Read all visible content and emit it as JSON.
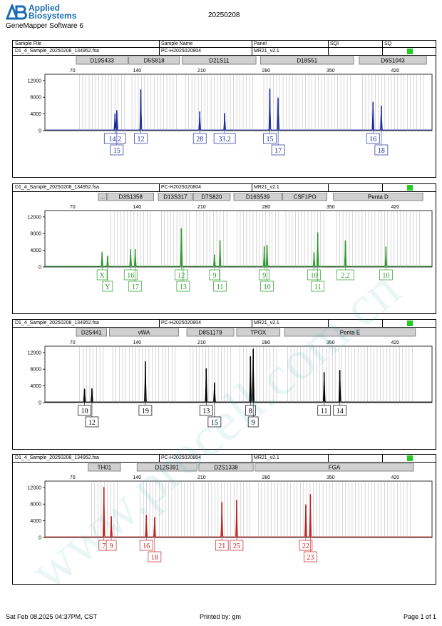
{
  "header": {
    "brand_line1": "Applied",
    "brand_line2": "Biosystems",
    "software": "GeneMapper Software 6",
    "run_id": "20250208"
  },
  "columns": {
    "sample_file": "Sample File",
    "sample_name": "Sample Name",
    "panel": "Panel",
    "sqi": "SQI",
    "sq": "SQ"
  },
  "footer": {
    "date": "Sat Feb 08,2025 04:37PM, CST",
    "printed_by": "Printed by: gm",
    "page": "Page 1 of 1"
  },
  "watermark": "www.procell.com.cn",
  "colors": {
    "blue": "#1a2a9a",
    "green": "#2c9a2c",
    "black": "#000000",
    "red": "#c02020",
    "sq_ok": "#22cc22",
    "locus_bar": "#d0d0d0",
    "bin": "#bdbdbd"
  },
  "chart_data": [
    {
      "type": "line",
      "dye": "blue",
      "sample_file": "D1_4_Sample_20250208_134952.fsa",
      "sample_name": "PC-H2025020804",
      "panel": "MR21_v2.1",
      "x_ticks": [
        70,
        140,
        210,
        280,
        350,
        420
      ],
      "y_ticks": [
        0,
        4000,
        8000,
        12000
      ],
      "xlim": [
        40,
        460
      ],
      "ylim": [
        0,
        13000
      ],
      "loci": [
        {
          "name": "D19S433",
          "start": 74,
          "end": 130
        },
        {
          "name": "D5S818",
          "start": 131,
          "end": 186
        },
        {
          "name": "D21S11",
          "start": 189,
          "end": 269
        },
        {
          "name": "D18S51",
          "start": 274,
          "end": 375
        },
        {
          "name": "D6S1043",
          "start": 381,
          "end": 454
        }
      ],
      "peaks": [
        {
          "x": 116,
          "y": 4000
        },
        {
          "x": 118,
          "y": 4800
        },
        {
          "x": 144,
          "y": 9800
        },
        {
          "x": 208,
          "y": 4500
        },
        {
          "x": 235,
          "y": 4100
        },
        {
          "x": 284,
          "y": 10000
        },
        {
          "x": 293,
          "y": 7800
        },
        {
          "x": 396,
          "y": 6800
        },
        {
          "x": 405,
          "y": 5900
        }
      ],
      "alleles": [
        {
          "label": "14.2",
          "x": 116,
          "row": 1
        },
        {
          "label": "15",
          "x": 118,
          "row": 2
        },
        {
          "label": "12",
          "x": 144,
          "row": 1
        },
        {
          "label": "28",
          "x": 208,
          "row": 1
        },
        {
          "label": "33.2",
          "x": 235,
          "row": 1
        },
        {
          "label": "15",
          "x": 284,
          "row": 1
        },
        {
          "label": "17",
          "x": 293,
          "row": 2
        },
        {
          "label": "16",
          "x": 396,
          "row": 1
        },
        {
          "label": "18",
          "x": 405,
          "row": 2
        }
      ]
    },
    {
      "type": "line",
      "dye": "green",
      "sample_file": "D1_4_Sample_20250208_134952.fsa",
      "sample_name": "PC-H2025020804",
      "panel": "MR21_v2.1",
      "x_ticks": [
        70,
        140,
        210,
        280,
        350,
        420
      ],
      "y_ticks": [
        0,
        4000,
        8000,
        12000
      ],
      "xlim": [
        40,
        460
      ],
      "ylim": [
        0,
        13000
      ],
      "loci": [
        {
          "name": "...",
          "start": 98,
          "end": 107
        },
        {
          "name": "D3S1358",
          "start": 108,
          "end": 158
        },
        {
          "name": "D13S317",
          "start": 163,
          "end": 200
        },
        {
          "name": "D7S820",
          "start": 201,
          "end": 241
        },
        {
          "name": "D16S539",
          "start": 245,
          "end": 297
        },
        {
          "name": "CSF1PO",
          "start": 298,
          "end": 346
        },
        {
          "name": "Penta D",
          "start": 353,
          "end": 450
        }
      ],
      "peaks": [
        {
          "x": 102,
          "y": 3500
        },
        {
          "x": 108,
          "y": 2600
        },
        {
          "x": 133,
          "y": 4200
        },
        {
          "x": 138,
          "y": 4200
        },
        {
          "x": 188,
          "y": 9200
        },
        {
          "x": 224,
          "y": 2900
        },
        {
          "x": 230,
          "y": 6300
        },
        {
          "x": 278,
          "y": 4900
        },
        {
          "x": 281,
          "y": 5200
        },
        {
          "x": 332,
          "y": 3400
        },
        {
          "x": 336,
          "y": 8200
        },
        {
          "x": 366,
          "y": 6200
        },
        {
          "x": 410,
          "y": 4800
        }
      ],
      "alleles": [
        {
          "label": "X",
          "x": 102,
          "row": 1
        },
        {
          "label": "Y",
          "x": 108,
          "row": 2
        },
        {
          "label": "16",
          "x": 133,
          "row": 1
        },
        {
          "label": "17",
          "x": 138,
          "row": 2
        },
        {
          "label": "12",
          "x": 188,
          "row": 1
        },
        {
          "label": "13",
          "x": 190,
          "row": 2
        },
        {
          "label": "9",
          "x": 224,
          "row": 1
        },
        {
          "label": "11",
          "x": 230,
          "row": 2
        },
        {
          "label": "9",
          "x": 278,
          "row": 1
        },
        {
          "label": "10",
          "x": 281,
          "row": 2
        },
        {
          "label": "10",
          "x": 332,
          "row": 1
        },
        {
          "label": "11",
          "x": 336,
          "row": 2
        },
        {
          "label": "2.2",
          "x": 366,
          "row": 1
        },
        {
          "label": "10",
          "x": 410,
          "row": 1
        }
      ]
    },
    {
      "type": "line",
      "dye": "black",
      "sample_file": "D1_4_Sample_20250208_134952.fsa",
      "sample_name": "PC-H2025020804",
      "panel": "MR21_v2.1",
      "x_ticks": [
        70,
        140,
        210,
        280,
        350,
        420
      ],
      "y_ticks": [
        0,
        4000,
        8000,
        12000
      ],
      "xlim": [
        40,
        460
      ],
      "ylim": [
        0,
        13000
      ],
      "loci": [
        {
          "name": "D2S441",
          "start": 74,
          "end": 107
        },
        {
          "name": "vWA",
          "start": 110,
          "end": 185
        },
        {
          "name": "D8S1179",
          "start": 194,
          "end": 245
        },
        {
          "name": "TPOX",
          "start": 248,
          "end": 295
        },
        {
          "name": "Penta E",
          "start": 300,
          "end": 442
        }
      ],
      "peaks": [
        {
          "x": 83,
          "y": 3200
        },
        {
          "x": 91,
          "y": 3300
        },
        {
          "x": 149,
          "y": 9800
        },
        {
          "x": 215,
          "y": 8100
        },
        {
          "x": 224,
          "y": 4700
        },
        {
          "x": 263,
          "y": 11000
        },
        {
          "x": 266,
          "y": 12800
        },
        {
          "x": 343,
          "y": 7200
        },
        {
          "x": 360,
          "y": 7700
        }
      ],
      "alleles": [
        {
          "label": "10",
          "x": 83,
          "row": 1
        },
        {
          "label": "12",
          "x": 91,
          "row": 2
        },
        {
          "label": "19",
          "x": 149,
          "row": 1
        },
        {
          "label": "13",
          "x": 215,
          "row": 1
        },
        {
          "label": "15",
          "x": 224,
          "row": 2
        },
        {
          "label": "8",
          "x": 263,
          "row": 1
        },
        {
          "label": "9",
          "x": 266,
          "row": 2
        },
        {
          "label": "11",
          "x": 343,
          "row": 1
        },
        {
          "label": "14",
          "x": 360,
          "row": 1
        }
      ]
    },
    {
      "type": "line",
      "dye": "red",
      "sample_file": "D1_4_Sample_20250208_134952.fsa",
      "sample_name": "PC-H2025020804",
      "panel": "MR21_v2.1",
      "x_ticks": [
        70,
        140,
        210,
        280,
        350,
        420
      ],
      "y_ticks": [
        0,
        4000,
        8000,
        12000
      ],
      "xlim": [
        40,
        460
      ],
      "ylim": [
        0,
        13000
      ],
      "loci": [
        {
          "name": "TH01",
          "start": 87,
          "end": 122
        },
        {
          "name": "D12S391",
          "start": 140,
          "end": 205
        },
        {
          "name": "D2S1338",
          "start": 207,
          "end": 266
        },
        {
          "name": "FGA",
          "start": 268,
          "end": 440
        }
      ],
      "peaks": [
        {
          "x": 104,
          "y": 12000
        },
        {
          "x": 112,
          "y": 5000
        },
        {
          "x": 150,
          "y": 5300
        },
        {
          "x": 159,
          "y": 4800
        },
        {
          "x": 232,
          "y": 8400
        },
        {
          "x": 248,
          "y": 8900
        },
        {
          "x": 323,
          "y": 7800
        },
        {
          "x": 328,
          "y": 10300
        }
      ],
      "alleles": [
        {
          "label": "7",
          "x": 104,
          "row": 1
        },
        {
          "label": "9",
          "x": 112,
          "row": 1
        },
        {
          "label": "16",
          "x": 150,
          "row": 1
        },
        {
          "label": "18",
          "x": 159,
          "row": 2
        },
        {
          "label": "21",
          "x": 232,
          "row": 1
        },
        {
          "label": "25",
          "x": 248,
          "row": 1
        },
        {
          "label": "22",
          "x": 323,
          "row": 1
        },
        {
          "label": "23",
          "x": 328,
          "row": 2
        }
      ]
    }
  ]
}
